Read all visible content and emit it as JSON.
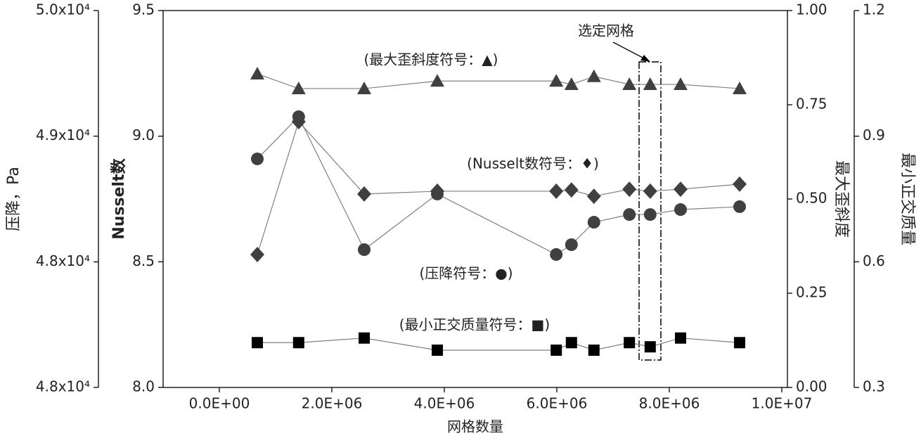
{
  "chart_data": {
    "type": "line",
    "xlabel": "网格数量",
    "ylabel": "Nusselt数",
    "y2label": "压降，Pa",
    "y3label": "最大歪斜度",
    "y4label": "最小正交质量",
    "x": [
      675000,
      1410000,
      2575000,
      3875000,
      5990000,
      6260000,
      6660000,
      7290000,
      7660000,
      8200000,
      9250000
    ],
    "xlim": [
      -1000000,
      10100000
    ],
    "xticks": [
      {
        "value": 0,
        "label": "0.0E+00"
      },
      {
        "value": 2000000,
        "label": "2.0E+06"
      },
      {
        "value": 4000000,
        "label": "4.0E+06"
      },
      {
        "value": 6000000,
        "label": "6.0E+06"
      },
      {
        "value": 8000000,
        "label": "8.0E+06"
      },
      {
        "value": 10000000,
        "label": "1.0E+07"
      }
    ],
    "ylim": [
      8.0,
      9.5
    ],
    "yticks": [
      {
        "value": 8.0,
        "label": "8.0"
      },
      {
        "value": 8.5,
        "label": "8.5"
      },
      {
        "value": 9.0,
        "label": "9.0"
      },
      {
        "value": 9.5,
        "label": "9.5"
      }
    ],
    "y2lim": [
      47500,
      50000
    ],
    "y2ticks": [
      {
        "value": 47500,
        "label": "4.8x10⁴"
      },
      {
        "value": 48333,
        "label": "4.8x10⁴"
      },
      {
        "value": 49167,
        "label": "4.9x10⁴"
      },
      {
        "value": 50000,
        "label": "5.0x10⁴"
      }
    ],
    "y3lim": [
      0,
      1
    ],
    "y3ticks": [
      {
        "value": 0,
        "label": "0.00"
      },
      {
        "value": 0.25,
        "label": "0.25"
      },
      {
        "value": 0.5,
        "label": "0.50"
      },
      {
        "value": 0.75,
        "label": "0.75"
      },
      {
        "value": 1,
        "label": "1.00"
      }
    ],
    "y4lim": [
      0.3,
      1.2
    ],
    "y4ticks": [
      0.3,
      0.6,
      0.9,
      1.2
    ],
    "series": [
      {
        "axis": "y3",
        "marker": "triangle",
        "color": "#404040",
        "values": [
          0.832,
          0.793,
          0.793,
          0.813,
          0.813,
          0.804,
          0.825,
          0.804,
          0.804,
          0.804,
          0.793
        ]
      },
      {
        "axis": "y",
        "marker": "diamond",
        "color": "#404040",
        "values": [
          8.529,
          9.058,
          8.77,
          8.781,
          8.781,
          8.786,
          8.761,
          8.789,
          8.781,
          8.789,
          8.809
        ]
      },
      {
        "axis": "y2",
        "marker": "circle",
        "color": "#404040",
        "values": [
          49016,
          49296,
          48414,
          48783,
          48382,
          48447,
          48596,
          48647,
          48647,
          48680,
          48699
        ]
      },
      {
        "axis": "y4",
        "marker": "square",
        "color": "#000000",
        "values": [
          0.407,
          0.407,
          0.418,
          0.389,
          0.389,
          0.407,
          0.389,
          0.407,
          0.397,
          0.418,
          0.407
        ]
      }
    ],
    "annotations": [
      "(最大歪斜度符号：▲)",
      "(Nusselt数符号：♦)",
      "(压降符号：●)",
      "(最小正交质量符号：■)",
      "选定网格"
    ]
  }
}
